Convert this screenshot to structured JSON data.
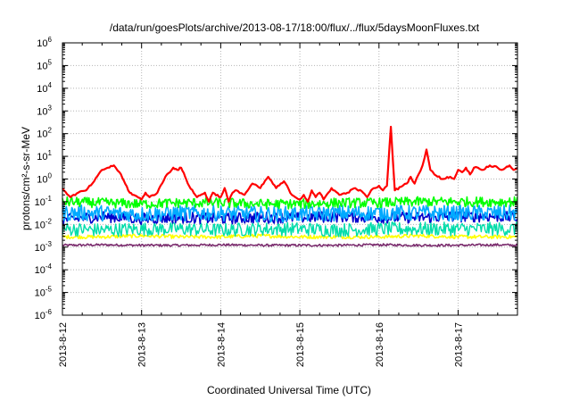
{
  "chart_data": {
    "type": "line",
    "title": "/data/run/goesPlots/archive/2013-08-17/18:00/flux/../flux/5daysMoonFluxes.txt",
    "xlabel": "Coordinated Universal Time (UTC)",
    "ylabel": "protons/cm²-s-sr-MeV",
    "yscale": "log",
    "ylim_exp": [
      -6,
      6
    ],
    "y_tick_base": "10",
    "y_tick_exponents": [
      "6",
      "5",
      "4",
      "3",
      "2",
      "1",
      "0",
      "-1",
      "-2",
      "-3",
      "-4",
      "-5",
      "-6"
    ],
    "xlim": [
      "2013-08-12 00:00",
      "2013-08-17 18:00"
    ],
    "x_tick_labels": [
      "2013-8-12",
      "2013-8-13",
      "2013-8-14",
      "2013-8-15",
      "2013-8-16",
      "2013-8-17"
    ],
    "grid": true,
    "series": [
      {
        "color": "#ff0000",
        "x_days": [
          0.0,
          0.1,
          0.2,
          0.3,
          0.4,
          0.5,
          0.65,
          0.72,
          0.85,
          0.9,
          1.0,
          1.05,
          1.1,
          1.2,
          1.3,
          1.4,
          1.45,
          1.5,
          1.55,
          1.6,
          1.7,
          1.8,
          1.85,
          1.9,
          2.0,
          2.05,
          2.1,
          2.15,
          2.2,
          2.3,
          2.4,
          2.5,
          2.6,
          2.7,
          2.8,
          2.9,
          3.0,
          3.05,
          3.1,
          3.15,
          3.2,
          3.25,
          3.3,
          3.4,
          3.5,
          3.6,
          3.7,
          3.8,
          3.85,
          3.9,
          3.95,
          4.0,
          4.05,
          4.1,
          4.15,
          4.2,
          4.3,
          4.35,
          4.4,
          4.45,
          4.5,
          4.55,
          4.6,
          4.65,
          4.7,
          4.8,
          4.9,
          4.95,
          5.0,
          5.05,
          5.1,
          5.15,
          5.2,
          5.25,
          5.3,
          5.4,
          5.5,
          5.55,
          5.6,
          5.65,
          5.7,
          5.75
        ],
        "log10_values": [
          -0.4,
          -0.8,
          -0.6,
          -0.5,
          -0.1,
          0.4,
          0.6,
          0.3,
          -0.6,
          -0.7,
          -0.9,
          -0.6,
          -0.8,
          -0.6,
          0.1,
          0.5,
          0.4,
          0.5,
          0.1,
          -0.3,
          -0.8,
          -0.6,
          -1.0,
          -0.6,
          -0.8,
          -0.4,
          -1.0,
          -0.6,
          -0.5,
          -0.7,
          -0.2,
          -0.4,
          0.1,
          -0.4,
          -0.1,
          -0.7,
          -0.9,
          -0.7,
          -1.0,
          -0.5,
          -0.8,
          -0.6,
          -0.9,
          -0.4,
          -0.7,
          -0.6,
          -0.4,
          -0.6,
          -0.8,
          -0.5,
          -0.4,
          -0.3,
          -0.5,
          -0.3,
          2.3,
          -0.5,
          -0.3,
          -0.2,
          0.1,
          -0.2,
          0.2,
          0.6,
          1.3,
          0.4,
          0.2,
          0.0,
          0.1,
          0.0,
          0.4,
          0.3,
          0.5,
          0.2,
          0.5,
          0.5,
          0.4,
          0.6,
          0.5,
          0.4,
          0.5,
          0.6,
          0.4,
          0.5
        ]
      },
      {
        "color": "#00ff00",
        "x_days": [
          0.0,
          0.5,
          1.0,
          1.5,
          2.0,
          2.5,
          3.0,
          3.5,
          4.0,
          4.5,
          5.0,
          5.5,
          5.75
        ],
        "log10_values": [
          -1.0,
          -1.05,
          -1.1,
          -1.05,
          -1.05,
          -1.1,
          -1.1,
          -1.05,
          -1.05,
          -1.0,
          -1.0,
          -1.0,
          -1.0
        ]
      },
      {
        "color": "#00aaff",
        "x_days": [
          0.0,
          0.5,
          1.0,
          1.5,
          2.0,
          2.5,
          3.0,
          3.5,
          4.0,
          4.5,
          5.0,
          5.5,
          5.75
        ],
        "log10_values": [
          -1.5,
          -1.5,
          -1.55,
          -1.5,
          -1.5,
          -1.55,
          -1.55,
          -1.5,
          -1.5,
          -1.5,
          -1.5,
          -1.5,
          -1.5
        ]
      },
      {
        "color": "#0000cc",
        "x_days": [
          0.0,
          0.5,
          1.0,
          1.5,
          2.0,
          2.5,
          3.0,
          3.5,
          4.0,
          4.5,
          5.0,
          5.5,
          5.75
        ],
        "log10_values": [
          -1.8,
          -1.65,
          -1.75,
          -1.7,
          -1.75,
          -1.7,
          -1.7,
          -1.65,
          -1.7,
          -1.7,
          -1.65,
          -1.65,
          -1.7
        ]
      },
      {
        "color": "#00ddaa",
        "x_days": [
          0.0,
          0.5,
          1.0,
          1.5,
          2.0,
          2.5,
          3.0,
          3.5,
          4.0,
          4.5,
          5.0,
          5.5,
          5.75
        ],
        "log10_values": [
          -2.2,
          -2.25,
          -2.2,
          -2.2,
          -2.25,
          -2.2,
          -2.2,
          -2.25,
          -2.2,
          -2.2,
          -2.2,
          -2.2,
          -2.2
        ]
      },
      {
        "color": "#ffff00",
        "x_days": [
          0.0,
          0.5,
          1.0,
          1.5,
          2.0,
          2.5,
          3.0,
          3.5,
          4.0,
          4.5,
          5.0,
          5.5,
          5.75
        ],
        "log10_values": [
          -2.55,
          -2.55,
          -2.5,
          -2.55,
          -2.55,
          -2.5,
          -2.55,
          -2.55,
          -2.55,
          -2.5,
          -2.55,
          -2.55,
          -2.55
        ]
      },
      {
        "color": "#7b2d6e",
        "x_days": [
          0.0,
          0.5,
          1.0,
          1.5,
          2.0,
          2.5,
          3.0,
          3.5,
          4.0,
          4.5,
          5.0,
          5.5,
          5.75
        ],
        "log10_values": [
          -2.92,
          -2.9,
          -2.92,
          -2.92,
          -2.9,
          -2.92,
          -2.92,
          -2.92,
          -2.9,
          -2.92,
          -2.92,
          -2.9,
          -2.92
        ]
      }
    ]
  }
}
